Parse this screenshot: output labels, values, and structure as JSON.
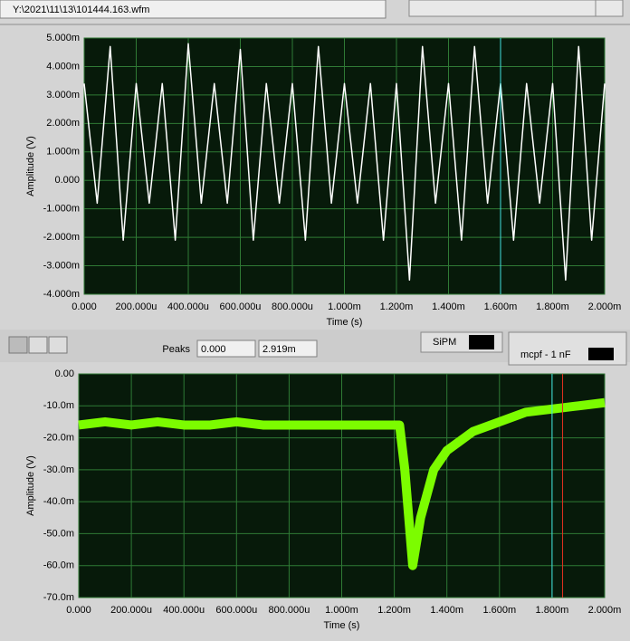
{
  "file_path": "Y:\\2021\\11\\13\\101444.163.wfm",
  "peaks": {
    "label": "Peaks",
    "fields": [
      "0.000",
      "2.919m"
    ]
  },
  "buttons": [
    "SiPM",
    "mcpf - 1 nF"
  ],
  "chart_data": [
    {
      "type": "line",
      "xlabel": "Time (s)",
      "ylabel": "Amplitude (V)",
      "xlim": [
        0,
        0.002
      ],
      "ylim": [
        -0.004,
        0.005
      ],
      "grid": true,
      "xticks": [
        {
          "value": 0,
          "label": "0.000"
        },
        {
          "value": 0.0002,
          "label": "200.000u"
        },
        {
          "value": 0.0004,
          "label": "400.000u"
        },
        {
          "value": 0.0006,
          "label": "600.000u"
        },
        {
          "value": 0.0008,
          "label": "800.000u"
        },
        {
          "value": 0.001,
          "label": "1.000m"
        },
        {
          "value": 0.0012,
          "label": "1.200m"
        },
        {
          "value": 0.0014,
          "label": "1.400m"
        },
        {
          "value": 0.0016,
          "label": "1.600m"
        },
        {
          "value": 0.0018,
          "label": "1.800m"
        },
        {
          "value": 0.002,
          "label": "2.000m"
        }
      ],
      "yticks": [
        {
          "value": 0.005,
          "label": "5.000m"
        },
        {
          "value": 0.004,
          "label": "4.000m"
        },
        {
          "value": 0.003,
          "label": "3.000m"
        },
        {
          "value": 0.002,
          "label": "2.000m"
        },
        {
          "value": 0.001,
          "label": "1.000m"
        },
        {
          "value": 0,
          "label": "0.000"
        },
        {
          "value": -0.001,
          "label": "-1.000m"
        },
        {
          "value": -0.002,
          "label": "-2.000m"
        },
        {
          "value": -0.003,
          "label": "-3.000m"
        },
        {
          "value": -0.004,
          "label": "-4.000m"
        }
      ],
      "series": [
        {
          "color": "#ffffff",
          "x": [
            0,
            5e-05,
            0.0001,
            0.00015,
            0.0002,
            0.00025,
            0.0003,
            0.00035,
            0.0004,
            0.00045,
            0.0005,
            0.00055,
            0.0006,
            0.00065,
            0.0007,
            0.00075,
            0.0008,
            0.00085,
            0.0009,
            0.00095,
            0.001,
            0.00105,
            0.0011,
            0.00115,
            0.0012,
            0.00125,
            0.0013,
            0.00135,
            0.0014,
            0.00145,
            0.0015,
            0.00155,
            0.0016,
            0.00165,
            0.0017,
            0.00175,
            0.0018,
            0.00185,
            0.0019,
            0.00195,
            0.002
          ],
          "values": [
            0.0034,
            -0.0008,
            0.0047,
            -0.0021,
            0.0034,
            -0.0008,
            0.0034,
            -0.0021,
            0.0048,
            -0.0008,
            0.0034,
            -0.0008,
            0.0046,
            -0.0021,
            0.0034,
            -0.0008,
            0.0034,
            -0.0021,
            0.0047,
            -0.0008,
            0.0034,
            -0.0008,
            0.0034,
            -0.0021,
            0.0034,
            -0.0035,
            0.0047,
            -0.0008,
            0.0034,
            -0.0021,
            0.0047,
            -0.0008,
            0.0034,
            -0.0021,
            0.0034,
            -0.0008,
            0.0034,
            -0.0035,
            0.0047,
            -0.0021,
            0.0034
          ]
        }
      ],
      "cursors": [
        {
          "x": 0.0016,
          "color": "#40e0e0"
        }
      ]
    },
    {
      "type": "line",
      "xlabel": "Time (s)",
      "ylabel": "Amplitude (V)",
      "xlim": [
        0,
        0.002
      ],
      "ylim": [
        -0.07,
        0
      ],
      "grid": true,
      "xticks": [
        {
          "value": 0,
          "label": "0.000"
        },
        {
          "value": 0.0002,
          "label": "200.000u"
        },
        {
          "value": 0.0004,
          "label": "400.000u"
        },
        {
          "value": 0.0006,
          "label": "600.000u"
        },
        {
          "value": 0.0008,
          "label": "800.000u"
        },
        {
          "value": 0.001,
          "label": "1.000m"
        },
        {
          "value": 0.0012,
          "label": "1.200m"
        },
        {
          "value": 0.0014,
          "label": "1.400m"
        },
        {
          "value": 0.0016,
          "label": "1.600m"
        },
        {
          "value": 0.0018,
          "label": "1.800m"
        },
        {
          "value": 0.002,
          "label": "2.000m"
        }
      ],
      "yticks": [
        {
          "value": 0,
          "label": "0.00"
        },
        {
          "value": -0.01,
          "label": "-10.0m"
        },
        {
          "value": -0.02,
          "label": "-20.0m"
        },
        {
          "value": -0.03,
          "label": "-30.0m"
        },
        {
          "value": -0.04,
          "label": "-40.0m"
        },
        {
          "value": -0.05,
          "label": "-50.0m"
        },
        {
          "value": -0.06,
          "label": "-60.0m"
        },
        {
          "value": -0.07,
          "label": "-70.0m"
        }
      ],
      "series": [
        {
          "color": "#7cfc00",
          "x": [
            0,
            0.0001,
            0.0002,
            0.0003,
            0.0004,
            0.0005,
            0.0006,
            0.0007,
            0.0008,
            0.0009,
            0.001,
            0.0011,
            0.0012,
            0.00122,
            0.00124,
            0.00127,
            0.0013,
            0.00135,
            0.0014,
            0.0015,
            0.0016,
            0.0017,
            0.0018,
            0.0019,
            0.002
          ],
          "values": [
            -0.016,
            -0.015,
            -0.016,
            -0.015,
            -0.016,
            -0.016,
            -0.015,
            -0.016,
            -0.016,
            -0.016,
            -0.016,
            -0.016,
            -0.016,
            -0.016,
            -0.03,
            -0.06,
            -0.045,
            -0.03,
            -0.024,
            -0.018,
            -0.015,
            -0.012,
            -0.011,
            -0.01,
            -0.009
          ]
        }
      ],
      "cursors": [
        {
          "x": 0.0018,
          "color": "#40e0e0"
        },
        {
          "x": 0.00184,
          "color": "#e03020"
        }
      ]
    }
  ]
}
